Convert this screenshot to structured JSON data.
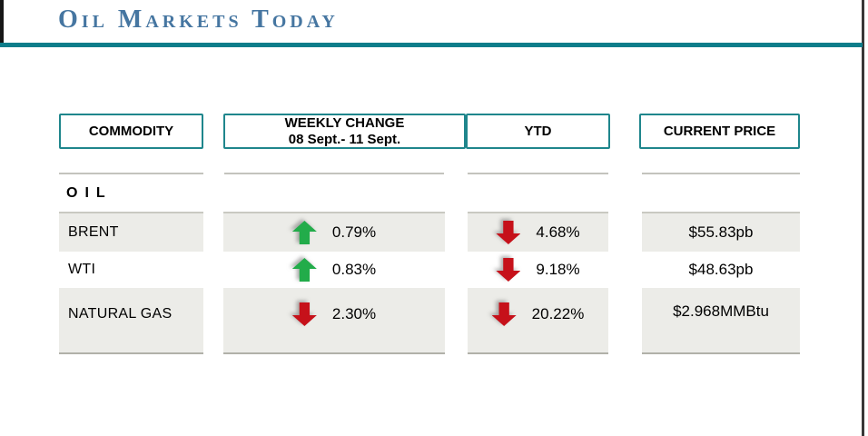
{
  "slide": {
    "title": "Oil Markets Today",
    "colors": {
      "title_blue": "#4676A1",
      "teal_accent": "#0D7D8A",
      "header_border_teal": "#1F868C",
      "row_stripe_gray": "#ECECE8",
      "up_green": "#22AC4A",
      "down_red": "#C6111A"
    }
  },
  "table": {
    "headers": {
      "commodity": {
        "label": "COMMODITY"
      },
      "weekly": {
        "label": "WEEKLY CHANGE",
        "sub": "08 Sept.- 11 Sept."
      },
      "ytd": {
        "label": "YTD"
      },
      "price": {
        "label": "CURRENT PRICE"
      }
    },
    "section_label": "OIL",
    "rows": [
      {
        "commodity": "BRENT",
        "weekly_change": {
          "direction": "up",
          "value": "0.79%"
        },
        "ytd": {
          "direction": "down",
          "value": "4.68%"
        },
        "current_price": "$55.83pb"
      },
      {
        "commodity": "WTI",
        "weekly_change": {
          "direction": "up",
          "value": "0.83%"
        },
        "ytd": {
          "direction": "down",
          "value": "9.18%"
        },
        "current_price": "$48.63pb"
      },
      {
        "commodity": "NATURAL GAS",
        "weekly_change": {
          "direction": "down",
          "value": "2.30%"
        },
        "ytd": {
          "direction": "down",
          "value": "20.22%"
        },
        "current_price": "$2.968MMBtu"
      }
    ]
  },
  "icons": {
    "up": "up-arrow-icon",
    "down": "down-arrow-icon"
  },
  "chart_data": {
    "type": "table",
    "title": "Oil Markets Today",
    "columns": [
      "COMMODITY",
      "WEEKLY CHANGE 08 Sept.- 11 Sept.",
      "YTD",
      "CURRENT PRICE"
    ],
    "rows": [
      [
        "BRENT",
        "+0.79%",
        "-4.68%",
        "$55.83pb"
      ],
      [
        "WTI",
        "+0.83%",
        "-9.18%",
        "$48.63pb"
      ],
      [
        "NATURAL GAS",
        "-2.30%",
        "-20.22%",
        "$2.968MMBtu"
      ]
    ],
    "notes": "Weekly change arrows: BRENT up, WTI up, NATURAL GAS down. YTD arrows: all down."
  }
}
